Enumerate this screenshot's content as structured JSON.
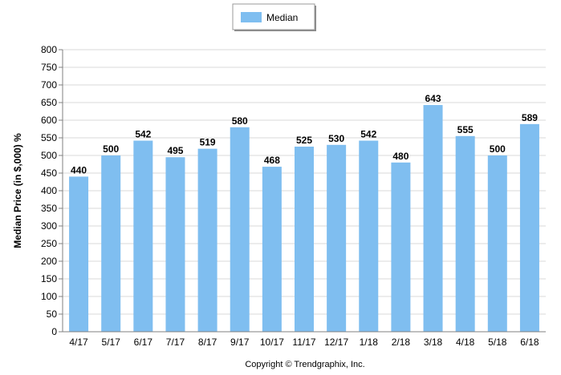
{
  "chart_data": {
    "type": "bar",
    "categories": [
      "4/17",
      "5/17",
      "6/17",
      "7/17",
      "8/17",
      "9/17",
      "10/17",
      "11/17",
      "12/17",
      "1/18",
      "2/18",
      "3/18",
      "4/18",
      "5/18",
      "6/18"
    ],
    "series": [
      {
        "name": "Median",
        "values": [
          440,
          500,
          542,
          495,
          519,
          580,
          468,
          525,
          530,
          542,
          480,
          643,
          555,
          500,
          589
        ]
      }
    ],
    "data_labels": [
      "440",
      "500",
      "542",
      "495",
      "519",
      "580",
      "468",
      "525",
      "530",
      "542",
      "480",
      "643",
      "555",
      "500",
      "589"
    ],
    "y_ticks": [
      0,
      50,
      100,
      150,
      200,
      250,
      300,
      350,
      400,
      450,
      500,
      550,
      600,
      650,
      700,
      750,
      800
    ],
    "ylim": [
      0,
      800
    ],
    "ylabel": "Median Price (in $,000) %",
    "xlabel": "",
    "grid": true,
    "legend_position": "top-center",
    "bar_color": "#7fbef0",
    "grid_color": "#d9d9d9",
    "copyright": "Copyright © Trendgraphix, Inc."
  }
}
